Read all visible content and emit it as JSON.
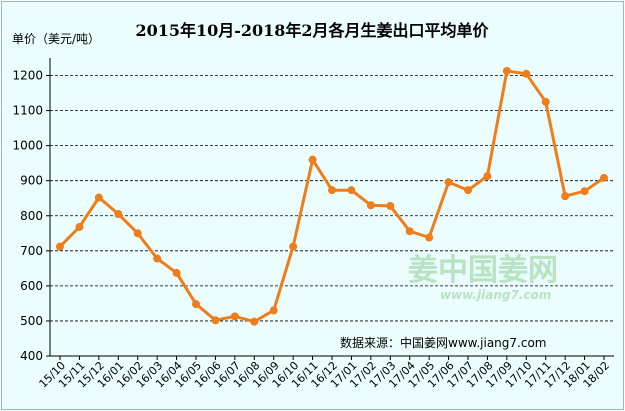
{
  "chart_data": {
    "type": "line",
    "title": "2015年10月-2018年2月各月生姜出口平均单价",
    "ylabel": "单价（美元/吨）",
    "xlabel": "",
    "ylim": [
      400,
      1250
    ],
    "yticks": [
      400,
      500,
      600,
      700,
      800,
      900,
      1000,
      1100,
      1200
    ],
    "grid": "horizontal-dashed",
    "categories": [
      "15/10",
      "15/11",
      "15/12",
      "16/01",
      "16/02",
      "16/03",
      "16/04",
      "16/05",
      "16/06",
      "16/07",
      "16/08",
      "16/09",
      "16/10",
      "16/11",
      "16/12",
      "17/01",
      "17/02",
      "17/03",
      "17/04",
      "17/05",
      "17/06",
      "17/07",
      "17/08",
      "17/09",
      "17/10",
      "17/11",
      "17/12",
      "18/01",
      "18/02"
    ],
    "series": [
      {
        "values": [
          712,
          768,
          852,
          805,
          750,
          678,
          637,
          548,
          502,
          513,
          498,
          530,
          712,
          960,
          873,
          873,
          830,
          828,
          756,
          738,
          896,
          873,
          913,
          1213,
          1205,
          1125,
          856,
          870,
          908
        ]
      }
    ],
    "line_color": "#ee7d1c"
  },
  "source_text": "数据来源：中国姜网www.jiang7.com",
  "watermark": {
    "text_cn": "姜中国姜网",
    "text_en": "www.jiang7.com"
  }
}
